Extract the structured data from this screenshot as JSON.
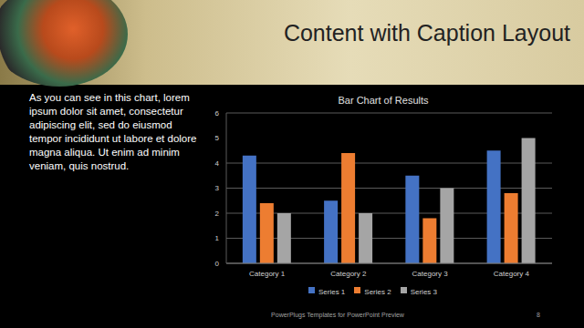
{
  "slide": {
    "title": "Content with Caption Layout",
    "caption": "As you can see in this chart, lorem ipsum dolor sit amet, consectetur adipiscing elit, sed do eiusmod tempor incididunt ut labore et dolore magna aliqua. Ut enim ad minim veniam, quis nostrud.",
    "footer": "PowerPlugs Templates for PowerPoint Preview",
    "page": "8"
  },
  "chart_data": {
    "type": "bar",
    "title": "Bar Chart of Results",
    "categories": [
      "Category 1",
      "Category 2",
      "Category 3",
      "Category 4"
    ],
    "series": [
      {
        "name": "Series 1",
        "color": "#4472c4",
        "values": [
          4.3,
          2.5,
          3.5,
          4.5
        ]
      },
      {
        "name": "Series 2",
        "color": "#ed7d31",
        "values": [
          2.4,
          4.4,
          1.8,
          2.8
        ]
      },
      {
        "name": "Series 3",
        "color": "#a5a5a5",
        "values": [
          2,
          2,
          3,
          5
        ]
      }
    ],
    "ylim": [
      0,
      6
    ],
    "yticks": [
      0,
      1,
      2,
      3,
      4,
      5,
      6
    ],
    "grid": true,
    "legend": "bottom"
  }
}
